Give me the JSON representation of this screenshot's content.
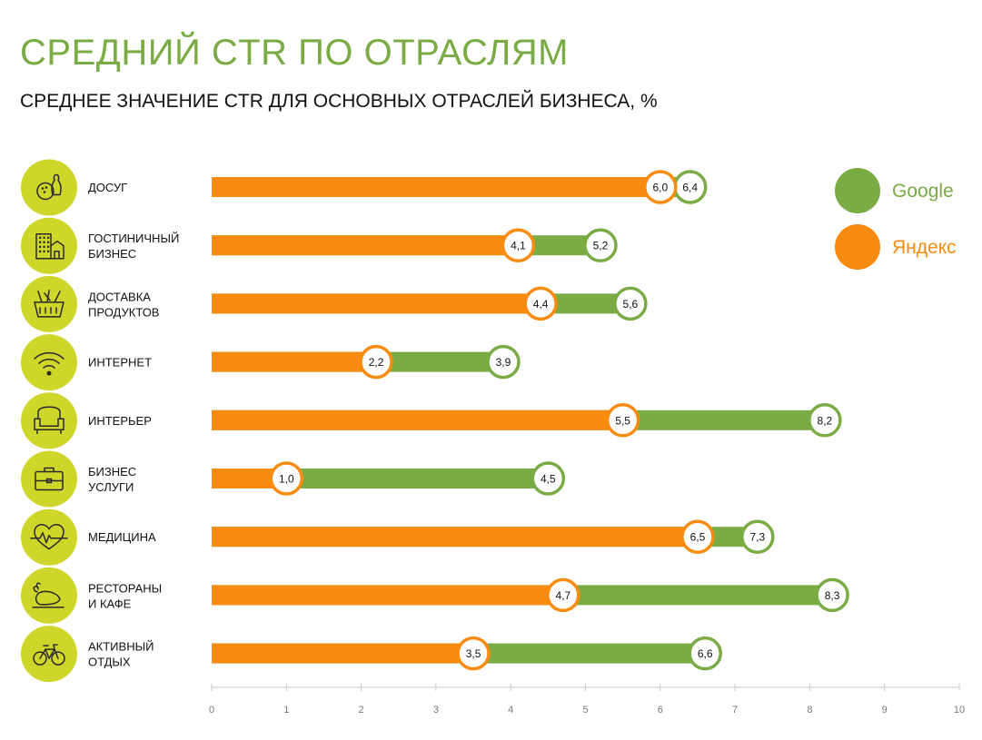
{
  "title": "СРЕДНИЙ CTR ПО ОТРАСЛЯМ",
  "subtitle": "СРЕДНЕЕ ЗНАЧЕНИЕ CTR ДЛЯ ОСНОВНЫХ ОТРАСЛЕЙ БИЗНЕСА, %",
  "colors": {
    "google": "#7aab45",
    "yandex": "#f98c10",
    "icon_circle": "#cfd62a",
    "title": "#7aab45"
  },
  "chart_data": {
    "type": "bar",
    "orientation": "horizontal",
    "categories": [
      {
        "lines": [
          "ДОСУГ"
        ],
        "icon": "bowling-icon"
      },
      {
        "lines": [
          "ГОСТИНИЧНЫЙ",
          "БИЗНЕС"
        ],
        "icon": "hotel-building-icon"
      },
      {
        "lines": [
          "ДОСТАВКА",
          "ПРОДУКТОВ"
        ],
        "icon": "grocery-basket-icon"
      },
      {
        "lines": [
          "ИНТЕРНЕТ"
        ],
        "icon": "wifi-icon"
      },
      {
        "lines": [
          "ИНТЕРЬЕР"
        ],
        "icon": "armchair-icon"
      },
      {
        "lines": [
          "БИЗНЕС",
          "УСЛУГИ"
        ],
        "icon": "briefcase-icon"
      },
      {
        "lines": [
          "МЕДИЦИНА"
        ],
        "icon": "heart-pulse-icon"
      },
      {
        "lines": [
          "РЕСТОРАНЫ",
          "И КАФЕ"
        ],
        "icon": "roast-chicken-icon"
      },
      {
        "lines": [
          "АКТИВНЫЙ",
          "ОТДЫХ"
        ],
        "icon": "bicycle-icon"
      }
    ],
    "series": [
      {
        "name": "Google",
        "values": [
          6.4,
          5.2,
          5.6,
          3.9,
          8.2,
          4.5,
          7.3,
          8.3,
          6.6
        ],
        "labels": [
          "6,4",
          "5,2",
          "5,6",
          "3,9",
          "8,2",
          "4,5",
          "7,3",
          "8,3",
          "6,6"
        ]
      },
      {
        "name": "Яндекс",
        "values": [
          6.0,
          4.1,
          4.4,
          2.2,
          5.5,
          1.0,
          6.5,
          4.7,
          3.5
        ],
        "labels": [
          "6,0",
          "4,1",
          "4,4",
          "2,2",
          "5,5",
          "1,0",
          "6,5",
          "4,7",
          "3,5"
        ]
      }
    ],
    "xlim": [
      0,
      10
    ],
    "xticks": [
      "0",
      "1",
      "2",
      "3",
      "4",
      "5",
      "6",
      "7",
      "8",
      "9",
      "10"
    ],
    "legend": {
      "position": "top-right"
    },
    "grid": false
  }
}
